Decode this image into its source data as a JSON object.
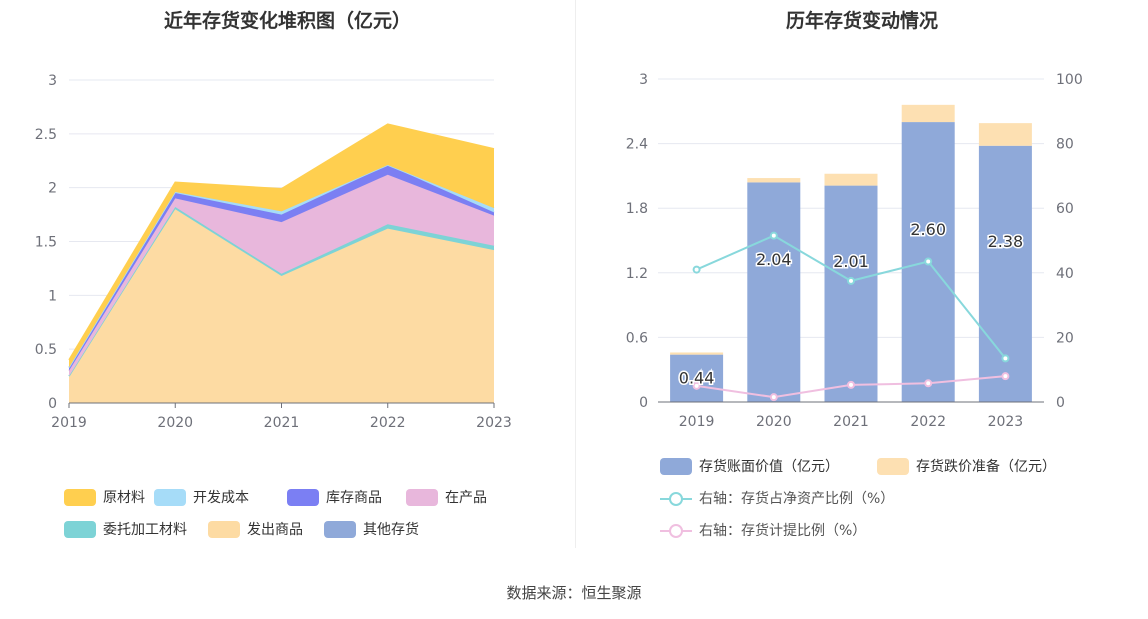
{
  "left_chart": {
    "title": "近年存货变化堆积图（亿元）",
    "legend": [
      {
        "name": "原材料",
        "color": "#ffcf4f"
      },
      {
        "name": "开发成本",
        "color": "#a6dcf8"
      },
      {
        "name": "库存商品",
        "color": "#7b7ff3"
      },
      {
        "name": "在产品",
        "color": "#e8b7dc"
      },
      {
        "name": "委托加工材料",
        "color": "#7dd3d6"
      },
      {
        "name": "发出商品",
        "color": "#fddba3"
      },
      {
        "name": "其他存货",
        "color": "#8fa9d9"
      }
    ]
  },
  "right_chart": {
    "title": "历年存货变动情况",
    "legend": [
      {
        "name": "存货账面价值（亿元）",
        "color": "#8fa9d9",
        "kind": "bar"
      },
      {
        "name": "存货跌价准备（亿元）",
        "color": "#fde0b2",
        "kind": "bar"
      },
      {
        "name": "右轴：存货占净资产比例（%）",
        "color": "#88d8dc",
        "kind": "line"
      },
      {
        "name": "右轴：存货计提比例（%）",
        "color": "#f0bfe0",
        "kind": "line"
      }
    ]
  },
  "chart_data": [
    {
      "type": "area",
      "stacked": true,
      "title": "近年存货变化堆积图（亿元）",
      "categories": [
        "2019",
        "2020",
        "2021",
        "2022",
        "2023"
      ],
      "ylim": [
        0,
        3
      ],
      "yticks": [
        "0",
        "0.5",
        "1",
        "1.5",
        "2",
        "2.5",
        "3"
      ],
      "legend_position": "bottom",
      "series": [
        {
          "name": "发出商品",
          "values": [
            0.25,
            1.8,
            1.18,
            1.62,
            1.42
          ]
        },
        {
          "name": "委托加工材料",
          "values": [
            0.0,
            0.02,
            0.02,
            0.04,
            0.04
          ]
        },
        {
          "name": "在产品",
          "values": [
            0.05,
            0.08,
            0.48,
            0.46,
            0.28
          ]
        },
        {
          "name": "库存商品",
          "values": [
            0.03,
            0.05,
            0.07,
            0.09,
            0.03
          ]
        },
        {
          "name": "开发成本",
          "values": [
            0.0,
            0.01,
            0.03,
            0.0,
            0.04
          ]
        },
        {
          "name": "原材料",
          "values": [
            0.07,
            0.09,
            0.21,
            0.38,
            0.55
          ]
        },
        {
          "name": "其他存货",
          "values": [
            0,
            0,
            0,
            0,
            0
          ]
        }
      ]
    },
    {
      "type": "bar",
      "stacked": true,
      "title": "历年存货变动情况",
      "categories": [
        "2019",
        "2020",
        "2021",
        "2022",
        "2023"
      ],
      "ylim": [
        0,
        3
      ],
      "yticks": [
        "0",
        "0.6",
        "1.2",
        "1.8",
        "2.4",
        "3"
      ],
      "y2lim": [
        0,
        100
      ],
      "y2ticks": [
        "0",
        "20",
        "40",
        "60",
        "80",
        "100"
      ],
      "legend_position": "bottom",
      "series": [
        {
          "name": "存货账面价值（亿元）",
          "values": [
            0.44,
            2.04,
            2.01,
            2.6,
            2.38
          ],
          "labels": [
            "0.44",
            "2.04",
            "2.01",
            "2.60",
            "2.38"
          ]
        },
        {
          "name": "存货跌价准备（亿元）",
          "values": [
            0.02,
            0.04,
            0.11,
            0.16,
            0.21
          ]
        },
        {
          "name": "右轴：存货占净资产比例（%）",
          "axis": "right",
          "values": [
            41,
            51.5,
            37.5,
            43.5,
            13.5
          ]
        },
        {
          "name": "右轴：存货计提比例（%）",
          "axis": "right",
          "values": [
            5,
            1.5,
            5.3,
            5.8,
            8
          ]
        }
      ]
    }
  ],
  "footer": "数据来源：恒生聚源"
}
